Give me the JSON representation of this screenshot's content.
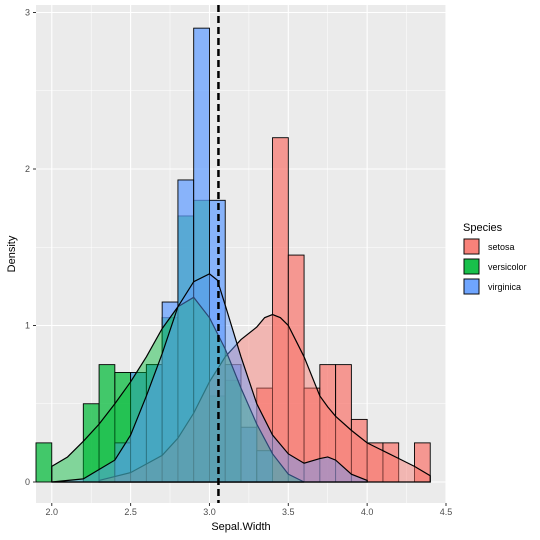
{
  "chart_data": {
    "type": "histogram_density",
    "xlabel": "Sepal.Width",
    "ylabel": "Density",
    "xlim": [
      1.9,
      4.5
    ],
    "ylim": [
      0,
      3
    ],
    "x_ticks": [
      2.0,
      2.5,
      3.0,
      3.5,
      4.0,
      4.5
    ],
    "x_tick_labels": [
      "2.0",
      "2.5",
      "3.0",
      "3.5",
      "4.0",
      "4.5"
    ],
    "y_ticks": [
      0,
      1,
      2,
      3
    ],
    "y_tick_labels": [
      "0",
      "1",
      "2",
      "3"
    ],
    "grid": true,
    "legend": {
      "title": "Species",
      "position": "right"
    },
    "bin_width": 0.1,
    "vline": {
      "x": 3.057,
      "style": "dashed",
      "color": "#000000"
    },
    "series": [
      {
        "name": "setosa",
        "color": "#F8766D",
        "bins": [
          {
            "x0": 3.3,
            "density": 0.6
          },
          {
            "x0": 3.4,
            "density": 2.2
          },
          {
            "x0": 3.5,
            "density": 1.45
          },
          {
            "x0": 3.6,
            "density": 0.6
          },
          {
            "x0": 3.7,
            "density": 0.75
          },
          {
            "x0": 3.8,
            "density": 0.75
          },
          {
            "x0": 3.9,
            "density": 0.4
          },
          {
            "x0": 4.0,
            "density": 0.25
          },
          {
            "x0": 4.1,
            "density": 0.25
          },
          {
            "x0": 4.3,
            "density": 0.25
          }
        ],
        "density_curve": [
          [
            2.3,
            0.01
          ],
          [
            2.5,
            0.06
          ],
          [
            2.7,
            0.17
          ],
          [
            2.8,
            0.28
          ],
          [
            2.9,
            0.44
          ],
          [
            3.0,
            0.64
          ],
          [
            3.1,
            0.8
          ],
          [
            3.2,
            0.91
          ],
          [
            3.3,
            0.99
          ],
          [
            3.35,
            1.05
          ],
          [
            3.4,
            1.07
          ],
          [
            3.45,
            1.05
          ],
          [
            3.5,
            1.0
          ],
          [
            3.6,
            0.8
          ],
          [
            3.7,
            0.55
          ],
          [
            3.75,
            0.48
          ],
          [
            3.8,
            0.42
          ],
          [
            3.9,
            0.33
          ],
          [
            4.0,
            0.25
          ],
          [
            4.1,
            0.2
          ],
          [
            4.2,
            0.15
          ],
          [
            4.3,
            0.1
          ],
          [
            4.4,
            0.04
          ]
        ]
      },
      {
        "name": "versicolor",
        "color": "#00BA38",
        "bins": [
          {
            "x0": 1.9,
            "density": 0.25
          },
          {
            "x0": 2.2,
            "density": 0.5
          },
          {
            "x0": 2.3,
            "density": 0.75
          },
          {
            "x0": 2.4,
            "density": 0.7
          },
          {
            "x0": 2.5,
            "density": 0.7
          },
          {
            "x0": 2.6,
            "density": 0.75
          },
          {
            "x0": 2.7,
            "density": 1.05
          },
          {
            "x0": 2.8,
            "density": 1.7
          },
          {
            "x0": 2.9,
            "density": 1.8
          },
          {
            "x0": 3.0,
            "density": 0.55
          },
          {
            "x0": 3.1,
            "density": 0.65
          }
        ],
        "density_curve": [
          [
            2.0,
            0.1
          ],
          [
            2.1,
            0.16
          ],
          [
            2.2,
            0.26
          ],
          [
            2.3,
            0.37
          ],
          [
            2.4,
            0.5
          ],
          [
            2.5,
            0.64
          ],
          [
            2.6,
            0.8
          ],
          [
            2.7,
            0.98
          ],
          [
            2.8,
            1.12
          ],
          [
            2.9,
            1.18
          ],
          [
            3.0,
            1.05
          ],
          [
            3.1,
            0.85
          ],
          [
            3.2,
            0.6
          ],
          [
            3.3,
            0.37
          ],
          [
            3.4,
            0.18
          ],
          [
            3.5,
            0.05
          ],
          [
            3.6,
            0.0
          ]
        ]
      },
      {
        "name": "virginica",
        "color": "#619CFF",
        "bins": [
          {
            "x0": 2.4,
            "density": 0.25
          },
          {
            "x0": 2.5,
            "density": 0.7
          },
          {
            "x0": 2.6,
            "density": 0.75
          },
          {
            "x0": 2.7,
            "density": 1.15
          },
          {
            "x0": 2.8,
            "density": 1.93
          },
          {
            "x0": 2.9,
            "density": 2.9
          },
          {
            "x0": 3.0,
            "density": 1.8
          },
          {
            "x0": 3.1,
            "density": 0.75
          },
          {
            "x0": 3.2,
            "density": 0.35
          },
          {
            "x0": 3.3,
            "density": 0.2
          }
        ],
        "density_curve": [
          [
            2.0,
            0.0
          ],
          [
            2.2,
            0.02
          ],
          [
            2.4,
            0.14
          ],
          [
            2.5,
            0.3
          ],
          [
            2.6,
            0.55
          ],
          [
            2.7,
            0.82
          ],
          [
            2.8,
            1.12
          ],
          [
            2.9,
            1.28
          ],
          [
            3.0,
            1.33
          ],
          [
            3.05,
            1.29
          ],
          [
            3.1,
            1.13
          ],
          [
            3.2,
            0.8
          ],
          [
            3.3,
            0.5
          ],
          [
            3.4,
            0.3
          ],
          [
            3.5,
            0.18
          ],
          [
            3.6,
            0.12
          ],
          [
            3.7,
            0.15
          ],
          [
            3.75,
            0.16
          ],
          [
            3.8,
            0.14
          ],
          [
            3.9,
            0.05
          ],
          [
            4.0,
            0.01
          ]
        ]
      }
    ]
  }
}
